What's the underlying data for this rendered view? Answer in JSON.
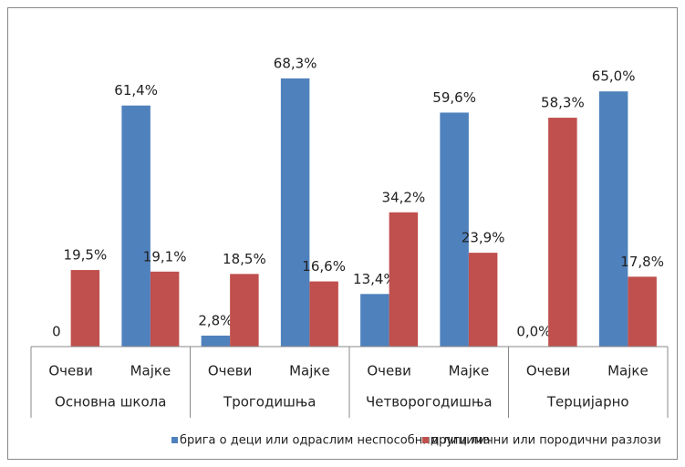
{
  "chart_data": {
    "type": "bar",
    "groups": [
      "Основна школа",
      "Трогодишња",
      "Четворогодишња",
      "Терцијарно"
    ],
    "categories": [
      "Очеви",
      "Мајке",
      "Очеви",
      "Мајке",
      "Очеви",
      "Мајке",
      "Очеви",
      "Мајке"
    ],
    "series": [
      {
        "name": "брига о деци или одраслим неспособним лицима",
        "color": "#4f81bd",
        "values": [
          0,
          61.4,
          2.8,
          68.3,
          13.4,
          59.6,
          0.0,
          65.0
        ],
        "value_labels": [
          "0",
          "61,4%",
          "2,8%",
          "68,3%",
          "13,4%",
          "59,6%",
          "0,0%",
          "65,0%"
        ]
      },
      {
        "name": "други лични или породични разлози",
        "color": "#c0504d",
        "values": [
          19.5,
          19.1,
          18.5,
          16.6,
          34.2,
          23.9,
          58.3,
          17.8
        ],
        "value_labels": [
          "19,5%",
          "19,1%",
          "18,5%",
          "16,6%",
          "34,2%",
          "23,9%",
          "58,3%",
          "17,8%"
        ]
      }
    ],
    "legend": "bottom"
  }
}
